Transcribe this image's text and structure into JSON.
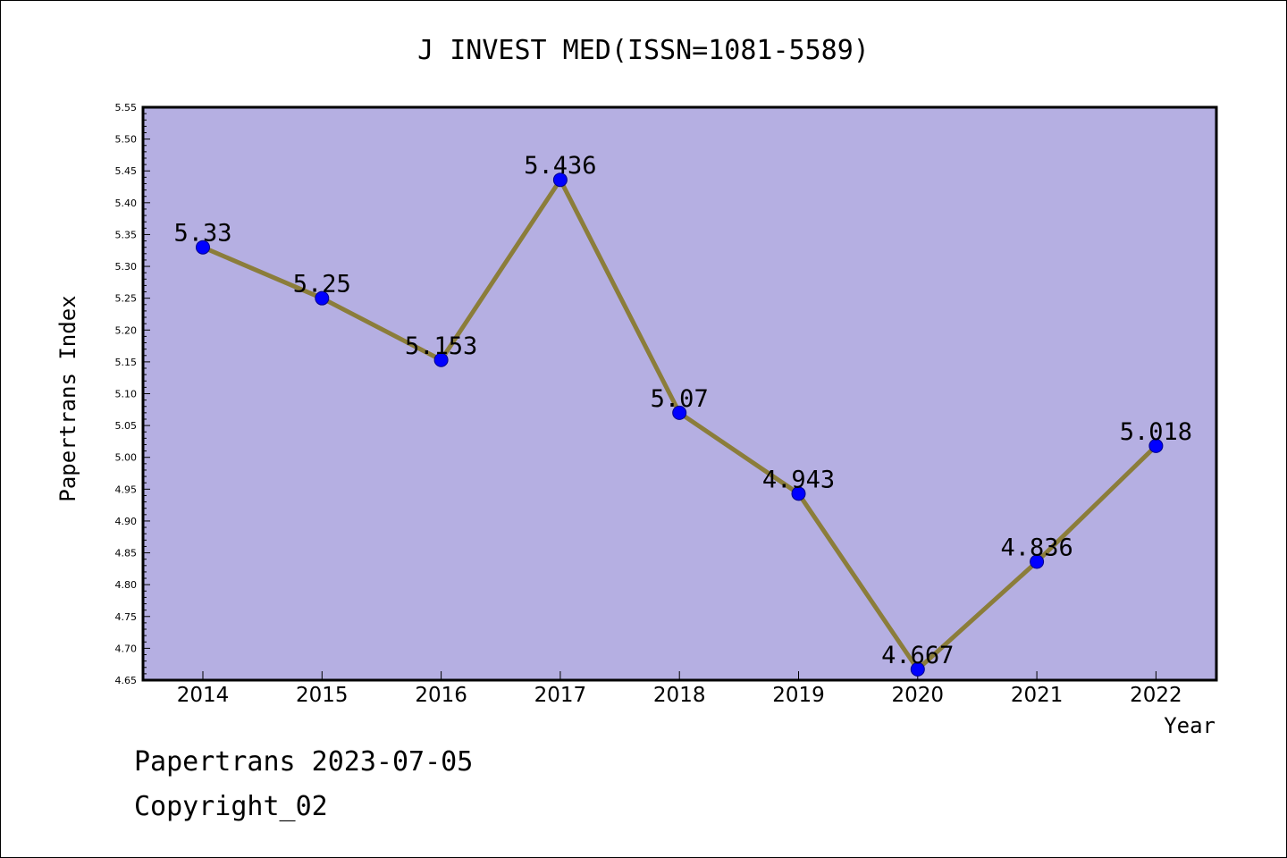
{
  "chart_data": {
    "type": "line",
    "title": "J INVEST MED(ISSN=1081-5589)",
    "xlabel": "Year",
    "ylabel": "Papertrans Index",
    "categories": [
      "2014",
      "2015",
      "2016",
      "2017",
      "2018",
      "2019",
      "2020",
      "2021",
      "2022"
    ],
    "series": [
      {
        "values": [
          5.33,
          5.25,
          5.153,
          5.436,
          5.07,
          4.943,
          4.667,
          4.836,
          5.018
        ],
        "labels": [
          "5.33",
          "5.25",
          "5.153",
          "5.436",
          "5.07",
          "4.943",
          "4.667",
          "4.836",
          "5.018"
        ]
      }
    ],
    "ylim": [
      4.65,
      5.55
    ],
    "yticks": [
      "4.65",
      "4.70",
      "4.75",
      "4.80",
      "4.85",
      "4.90",
      "4.95",
      "5.00",
      "5.05",
      "5.10",
      "5.15",
      "5.20",
      "5.25",
      "5.30",
      "5.35",
      "5.40",
      "5.45",
      "5.50",
      "5.55"
    ],
    "grid": false,
    "colors": {
      "plot_background": "#b5afe2",
      "line": "#8b7d3a",
      "marker": "#0000ff"
    }
  },
  "footer": {
    "date_line": "Papertrans 2023-07-05",
    "copyright": "Copyright_02"
  }
}
